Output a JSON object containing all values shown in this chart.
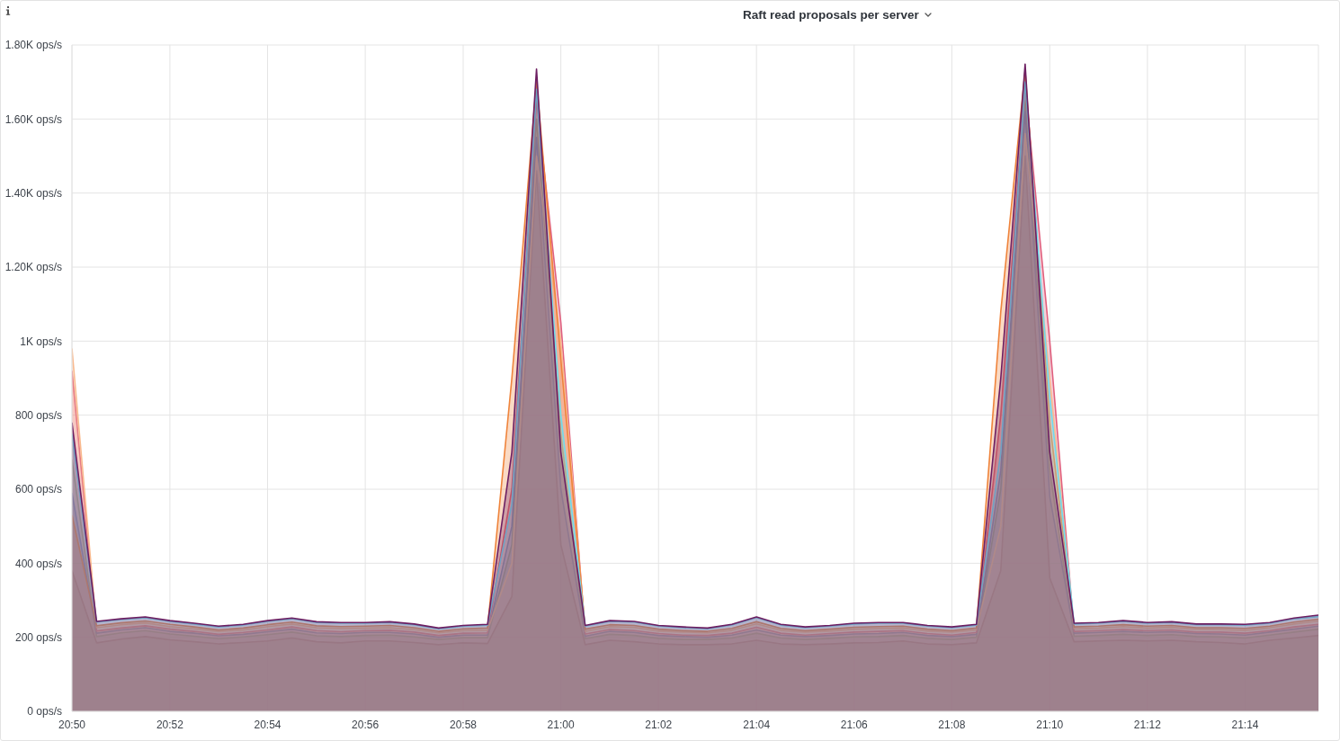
{
  "chart_data": {
    "type": "area",
    "title": "Raft read proposals per server",
    "x": [
      20.8333,
      20.8417,
      20.85,
      20.8583,
      20.8667,
      20.875,
      20.8833,
      20.8917,
      20.9,
      20.9083,
      20.9167,
      20.925,
      20.9333,
      20.9417,
      20.95,
      20.9583,
      20.9667,
      20.975,
      20.9833,
      20.9917,
      21,
      21.0083,
      21.0167,
      21.025,
      21.0333,
      21.0417,
      21.05,
      21.0583,
      21.0667,
      21.075,
      21.0833,
      21.0917,
      21.1,
      21.1083,
      21.1167,
      21.125,
      21.1333,
      21.1417,
      21.15,
      21.1583,
      21.1667,
      21.175,
      21.1833,
      21.1917,
      21.2,
      21.2083,
      21.2167,
      21.225,
      21.2333,
      21.2417,
      21.25,
      21.2583
    ],
    "xlim": [
      20.8333,
      21.2583
    ],
    "xticks": [
      {
        "value": 20.8333,
        "label": "20:50"
      },
      {
        "value": 20.8667,
        "label": "20:52"
      },
      {
        "value": 20.9,
        "label": "20:54"
      },
      {
        "value": 20.9333,
        "label": "20:56"
      },
      {
        "value": 20.9667,
        "label": "20:58"
      },
      {
        "value": 21,
        "label": "21:00"
      },
      {
        "value": 21.0333,
        "label": "21:02"
      },
      {
        "value": 21.0667,
        "label": "21:04"
      },
      {
        "value": 21.1,
        "label": "21:06"
      },
      {
        "value": 21.1333,
        "label": "21:08"
      },
      {
        "value": 21.1667,
        "label": "21:10"
      },
      {
        "value": 21.2,
        "label": "21:12"
      },
      {
        "value": 21.2333,
        "label": "21:14"
      }
    ],
    "ylim": [
      0,
      1800
    ],
    "yticks": [
      {
        "value": 0,
        "label": "0 ops/s"
      },
      {
        "value": 200,
        "label": "200 ops/s"
      },
      {
        "value": 400,
        "label": "400 ops/s"
      },
      {
        "value": 600,
        "label": "600 ops/s"
      },
      {
        "value": 800,
        "label": "800 ops/s"
      },
      {
        "value": 1000,
        "label": "1K ops/s"
      },
      {
        "value": 1200,
        "label": "1.20K ops/s"
      },
      {
        "value": 1400,
        "label": "1.40K ops/s"
      },
      {
        "value": 1600,
        "label": "1.60K ops/s"
      },
      {
        "value": 1800,
        "label": "1.80K ops/s"
      }
    ],
    "grid": true,
    "series": [
      {
        "color": "#9a5b4f",
        "values": [
          380,
          185,
          195,
          202,
          193,
          188,
          182,
          186,
          190,
          198,
          188,
          185,
          190,
          190,
          186,
          180,
          185,
          183,
          310,
          1460,
          450,
          180,
          192,
          188,
          182,
          180,
          180,
          182,
          192,
          182,
          180,
          182,
          185,
          186,
          190,
          182,
          180,
          185,
          380,
          1500,
          360,
          188,
          190,
          192,
          190,
          192,
          188,
          186,
          182,
          192,
          198,
          205
        ]
      },
      {
        "color": "#7eb26d",
        "values": [
          680,
          202,
          212,
          218,
          209,
          203,
          196,
          201,
          207,
          214,
          204,
          202,
          205,
          206,
          201,
          194,
          199,
          199,
          450,
          1600,
          750,
          196,
          208,
          205,
          197,
          194,
          194,
          198,
          211,
          198,
          194,
          197,
          201,
          202,
          205,
          197,
          194,
          200,
          600,
          1650,
          650,
          203,
          205,
          208,
          205,
          207,
          202,
          201,
          198,
          206,
          214,
          222
        ]
      },
      {
        "color": "#447ebc",
        "values": [
          590,
          211,
          220,
          226,
          216,
          211,
          204,
          208,
          215,
          222,
          212,
          210,
          213,
          213,
          209,
          200,
          206,
          206,
          500,
          1550,
          600,
          203,
          216,
          213,
          205,
          202,
          200,
          206,
          220,
          206,
          202,
          205,
          209,
          210,
          213,
          205,
          202,
          208,
          650,
          1620,
          580,
          211,
          213,
          216,
          213,
          215,
          210,
          209,
          206,
          214,
          222,
          230
        ]
      },
      {
        "color": "#e0607e",
        "values": [
          920,
          217,
          225,
          231,
          222,
          216,
          208,
          213,
          220,
          228,
          218,
          215,
          218,
          219,
          214,
          205,
          211,
          212,
          600,
          1650,
          1050,
          209,
          221,
          218,
          210,
          206,
          205,
          211,
          227,
          211,
          206,
          210,
          214,
          216,
          218,
          210,
          206,
          213,
          800,
          1690,
          1000,
          216,
          218,
          221,
          218,
          220,
          214,
          214,
          211,
          218,
          228,
          235
        ]
      },
      {
        "color": "#f9ba8f",
        "values": [
          980,
          226,
          234,
          239,
          229,
          223,
          216,
          220,
          229,
          236,
          226,
          224,
          225,
          226,
          221,
          212,
          218,
          219,
          400,
          1500,
          1000,
          216,
          229,
          227,
          217,
          214,
          212,
          219,
          236,
          219,
          214,
          217,
          222,
          224,
          225,
          217,
          214,
          220,
          500,
          1560,
          900,
          223,
          225,
          229,
          225,
          227,
          222,
          221,
          219,
          226,
          236,
          244
        ]
      },
      {
        "color": "#ef843c",
        "values": [
          530,
          231,
          239,
          244,
          235,
          228,
          220,
          225,
          234,
          241,
          231,
          229,
          230,
          232,
          226,
          216,
          223,
          225,
          900,
          1700,
          950,
          222,
          234,
          232,
          222,
          218,
          216,
          224,
          242,
          224,
          218,
          222,
          227,
          229,
          230,
          222,
          218,
          225,
          1080,
          1730,
          780,
          228,
          230,
          234,
          230,
          232,
          226,
          226,
          224,
          230,
          241,
          249
        ]
      },
      {
        "color": "#70dbed",
        "values": [
          750,
          241,
          248,
          253,
          243,
          236,
          228,
          233,
          243,
          250,
          240,
          238,
          238,
          240,
          234,
          223,
          230,
          233,
          560,
          1680,
          800,
          230,
          243,
          241,
          230,
          226,
          223,
          233,
          253,
          233,
          226,
          230,
          236,
          238,
          238,
          230,
          226,
          233,
          700,
          1700,
          850,
          236,
          238,
          243,
          238,
          240,
          234,
          234,
          233,
          238,
          250,
          256
        ]
      },
      {
        "color": "#6d1f62",
        "values": [
          780,
          243,
          250,
          255,
          245,
          238,
          230,
          235,
          245,
          252,
          242,
          240,
          240,
          242,
          236,
          225,
          232,
          235,
          700,
          1735,
          700,
          232,
          245,
          243,
          232,
          228,
          225,
          235,
          255,
          235,
          228,
          232,
          238,
          240,
          240,
          232,
          228,
          235,
          900,
          1748,
          700,
          238,
          240,
          245,
          240,
          242,
          236,
          236,
          235,
          240,
          252,
          260
        ]
      }
    ]
  }
}
